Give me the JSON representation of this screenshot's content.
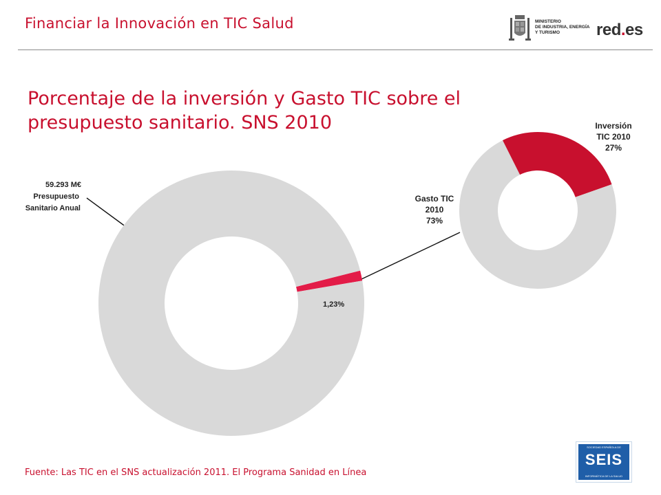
{
  "header": {
    "title": "Financiar la Innovación en TIC Salud",
    "ministry_text": "MINISTERIO\nDE INDUSTRIA, ENERGÍA\nY TURISMO",
    "reds_logo_main": "red",
    "reds_logo_dot": ".",
    "reds_logo_end": "es"
  },
  "main_title": "Porcentaje de la inversión y Gasto TIC sobre el presupuesto sanitario. SNS 2010",
  "chart_data": [
    {
      "type": "pie",
      "donut": true,
      "slices": [
        {
          "label": "Presupuesto Sanitario Anual",
          "value": 98.77,
          "color": "#d9d9d9"
        },
        {
          "label": "1,23%",
          "value": 1.23,
          "color": "#e31c48"
        }
      ],
      "callout": {
        "amount": "59.293 M€",
        "line1": "Presupuesto",
        "line2": "Sanitario Anual"
      },
      "slice_label": "1,23%"
    },
    {
      "type": "pie",
      "donut": true,
      "slices": [
        {
          "label": "Inversión TIC 2010",
          "value": 27,
          "color": "#c8102e"
        },
        {
          "label": "Gasto TIC 2010",
          "value": 73,
          "color": "#d9d9d9"
        }
      ],
      "labels": {
        "inversion": [
          "Inversión",
          "TIC 2010",
          "27%"
        ],
        "gasto": [
          "Gasto TIC",
          "2010",
          "73%"
        ]
      }
    }
  ],
  "source": "Fuente: Las TIC en el SNS actualización 2011. El Programa Sanidad en Línea",
  "seis_logo": {
    "top": "SOCIEDAD ESPAÑOLA DE",
    "mid": "SEIS",
    "bottom": "INFORMÁTICA DE LA SALUD"
  },
  "colors": {
    "accent": "#c8102e",
    "gray": "#d9d9d9"
  }
}
